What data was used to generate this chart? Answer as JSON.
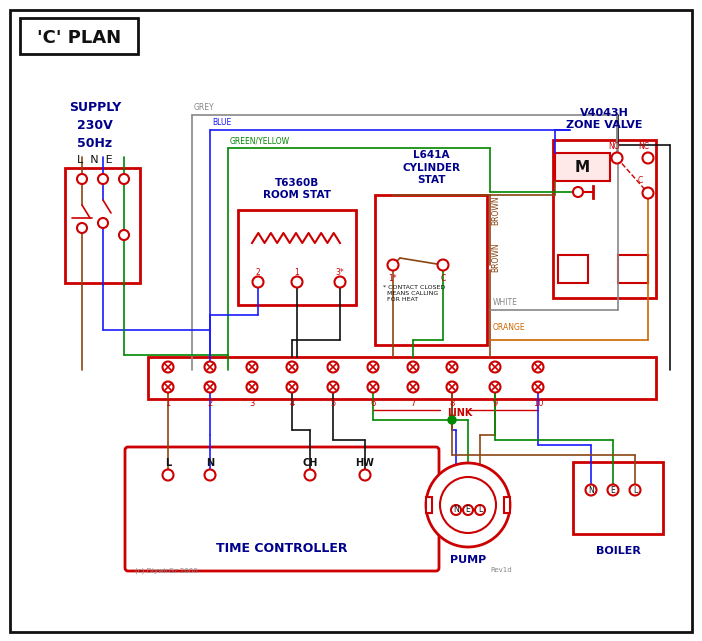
{
  "red": "#cc0000",
  "blue": "#1a1aff",
  "green": "#008800",
  "brown": "#8B4513",
  "grey": "#888888",
  "orange": "#cc6600",
  "black": "#111111",
  "white": "#ffffff",
  "dark_blue": "#00008B",
  "title": "'C' PLAN",
  "tc_title": "TIME CONTROLLER",
  "pump_title": "PUMP",
  "boiler_title": "BOILER",
  "footer_left": "(c) DiywirGz 2000",
  "footer_right": "Rev1d",
  "supply_text": "SUPPLY\n230V\n50Hz",
  "supply_lne": "L  N  E",
  "room_stat_title": "T6360B\nROOM STAT",
  "cyl_stat_title": "L641A\nCYLINDER\nSTAT",
  "zone_valve_title": "V4043H\nZONE VALVE",
  "cyl_note": "* CONTACT CLOSED\n  MEANS CALLING\n  FOR HEAT"
}
